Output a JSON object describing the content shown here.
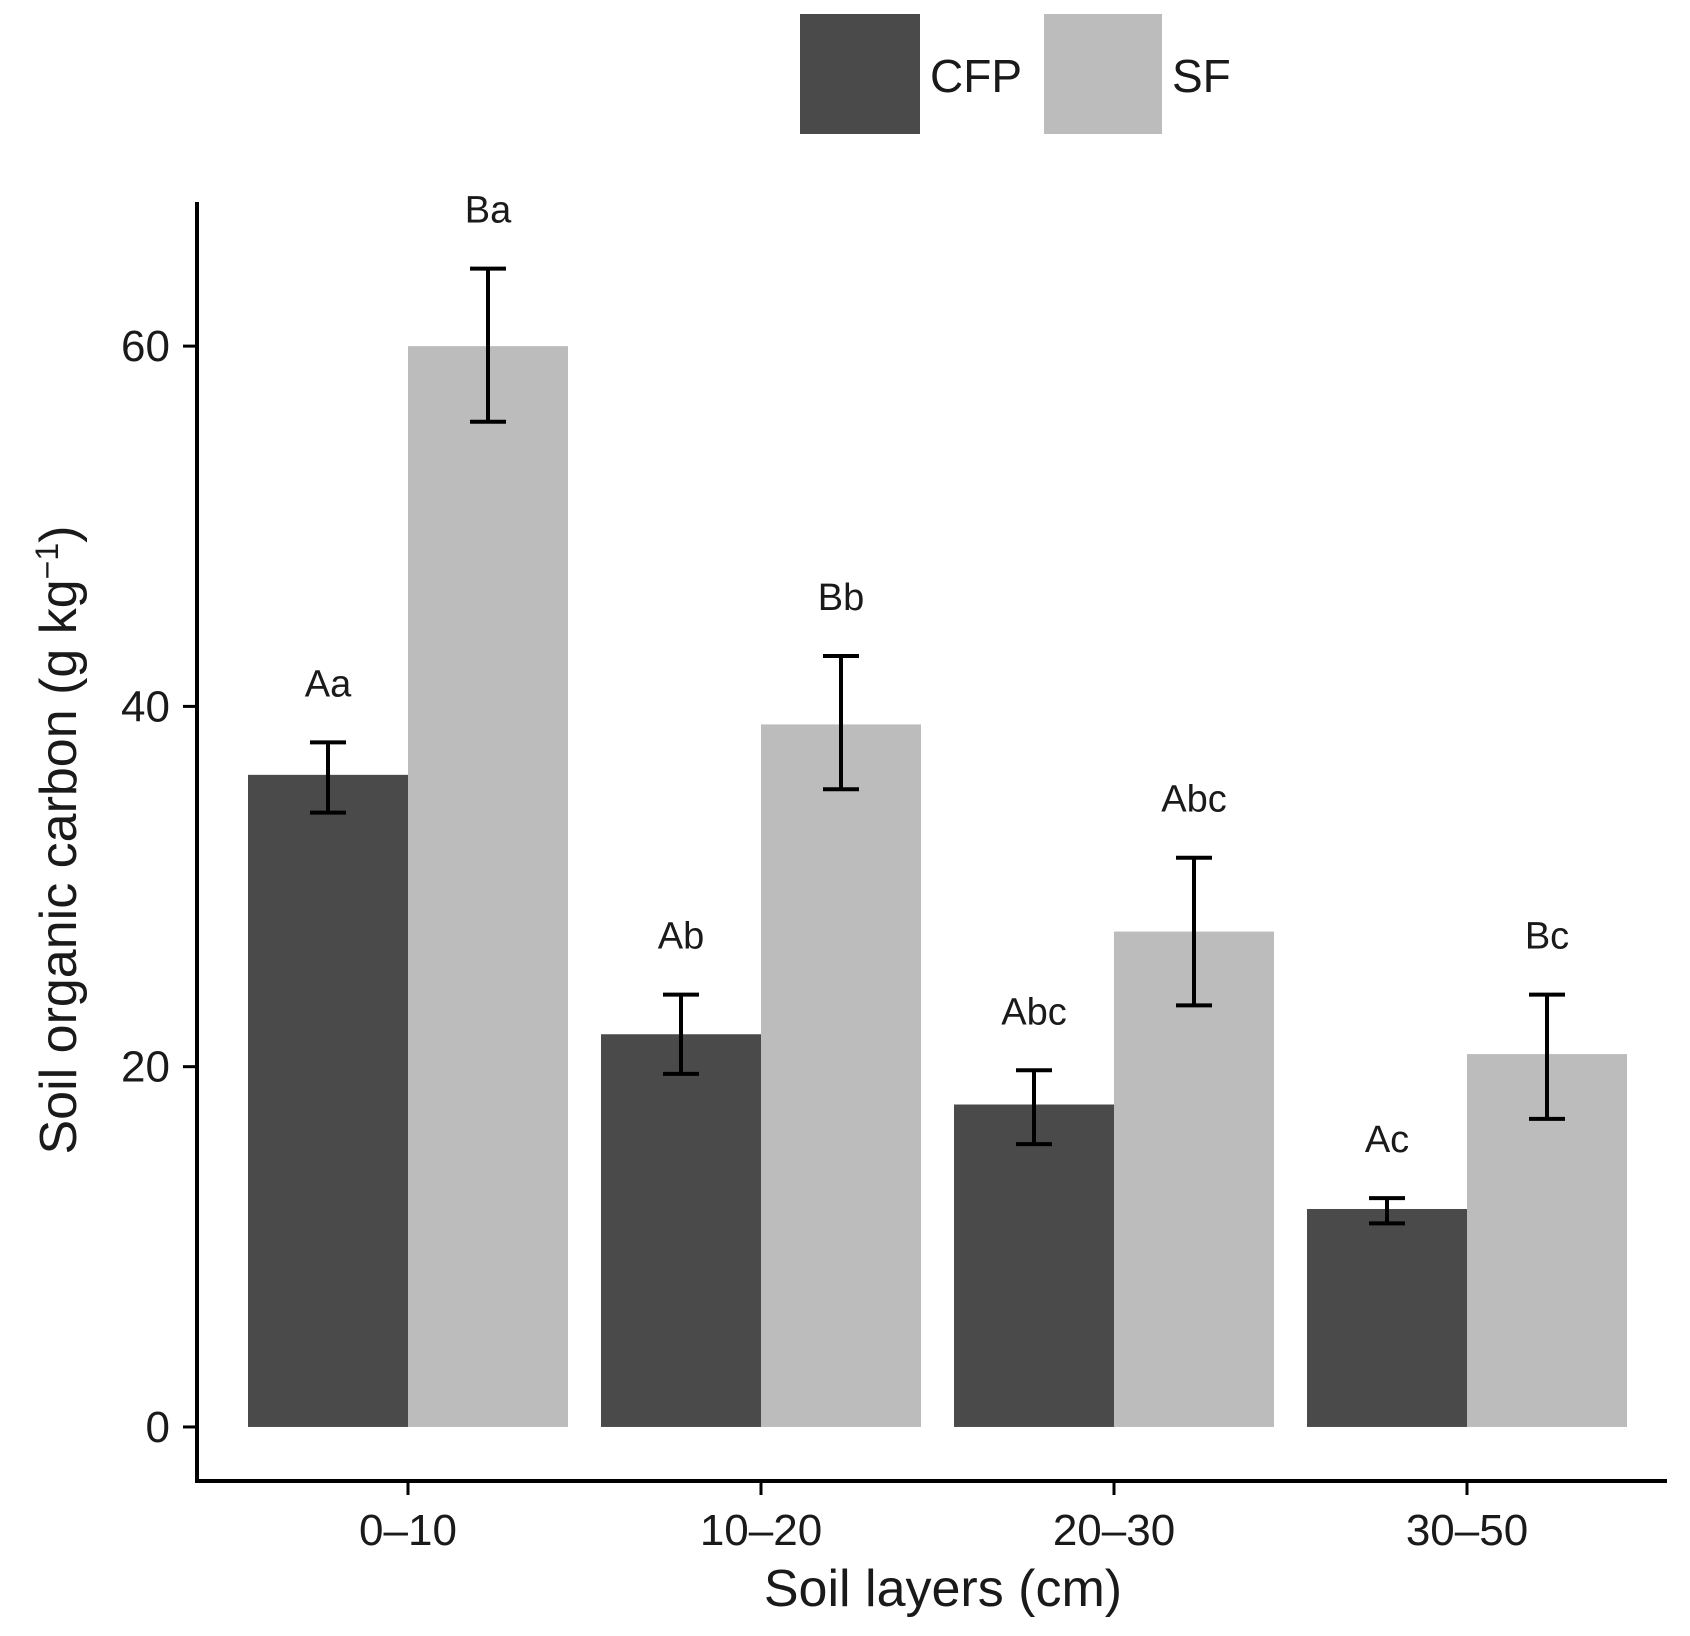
{
  "chart_data": {
    "type": "bar",
    "title": "",
    "xlabel": "Soil layers (cm)",
    "ylabel": "Soil organic carbon (g kg",
    "ylabel_sup": "−1",
    "ylabel_close": ")",
    "ylim": [
      -3,
      68
    ],
    "yticks": [
      0,
      20,
      40,
      60
    ],
    "grid": false,
    "legend_position": "top-center",
    "categories": [
      "0–10",
      "10–20",
      "20–30",
      "30–50"
    ],
    "series": [
      {
        "name": "CFP",
        "color": "#4a4a4a",
        "values": [
          36.2,
          21.8,
          17.9,
          12.1
        ],
        "error_low": [
          34.1,
          19.6,
          15.7,
          11.3
        ],
        "error_high": [
          38.0,
          24.0,
          19.8,
          12.7
        ],
        "labels": [
          "Aa",
          "Ab",
          "Abc",
          "Ac"
        ]
      },
      {
        "name": "SF",
        "color": "#bcbcbc",
        "values": [
          60.0,
          39.0,
          27.5,
          20.7
        ],
        "error_low": [
          55.8,
          35.4,
          23.4,
          17.1
        ],
        "error_high": [
          64.3,
          42.8,
          31.6,
          24.0
        ],
        "labels": [
          "Ba",
          "Bb",
          "Abc",
          "Bc"
        ]
      }
    ]
  }
}
